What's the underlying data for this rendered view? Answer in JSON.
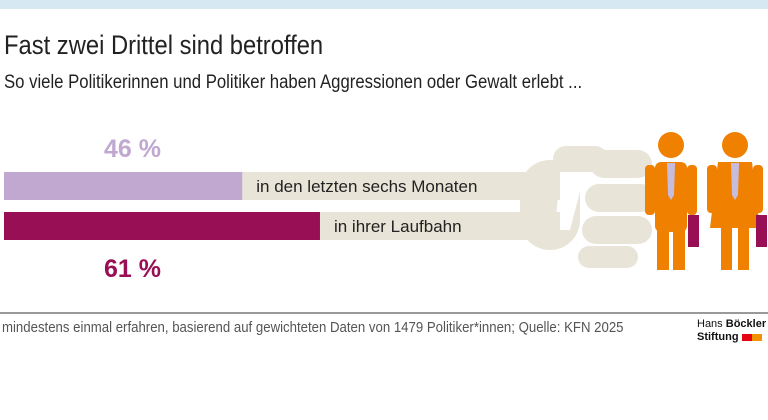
{
  "header": {
    "title": "Fast zwei Drittel sind betroffen",
    "subtitle": "So viele Politikerinnen und Politiker haben Aggressionen oder Gewalt erlebt ..."
  },
  "chart_data": {
    "type": "bar",
    "orientation": "horizontal",
    "categories": [
      "in den letzten sechs Monaten",
      "in ihrer Laufbahn"
    ],
    "values": [
      46,
      61
    ],
    "data_labels": [
      "46 %",
      "61 %"
    ],
    "colors": [
      "#c0a8d0",
      "#990f55"
    ],
    "xlim": [
      0,
      100
    ],
    "grid": false
  },
  "footer": {
    "note": "mindestens einmal erfahren, basierend auf gewichteten Daten von 1479 Politiker*innen; Quelle: KFN 2025"
  },
  "logo": {
    "line1a": "Hans ",
    "line1b": "Böckler",
    "line2": "Stiftung",
    "colors": [
      "#e30613",
      "#f39200"
    ]
  },
  "illustration": {
    "icons": [
      "fist-icon",
      "businessman-icon",
      "businesswoman-icon"
    ],
    "colors": {
      "fist": "#e8e5d8",
      "people": "#f08000",
      "tie": "#c8bcdc",
      "briefcase": "#990f55"
    }
  }
}
